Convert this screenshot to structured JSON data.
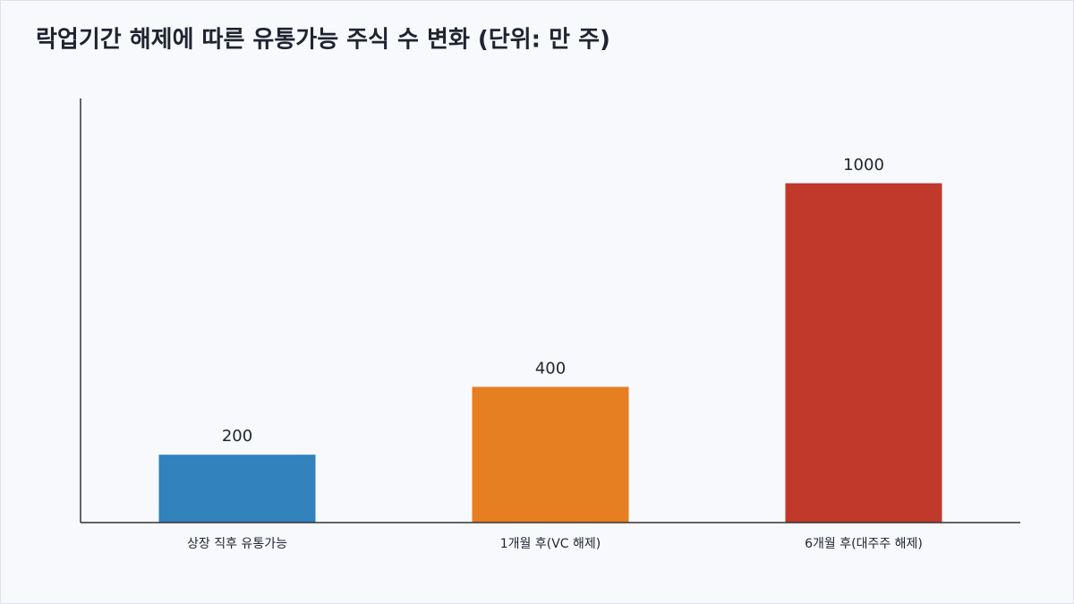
{
  "chart_data": {
    "type": "bar",
    "title": "락업기간 해제에 따른 유통가능 주식 수 변화 (단위: 만 주)",
    "categories": [
      "상장 직후 유통가능",
      "1개월 후(VC 해제)",
      "6개월 후(대주주 해제)"
    ],
    "values": [
      200,
      400,
      1000
    ],
    "colors": [
      "#3182bd",
      "#e67e22",
      "#c0392b"
    ],
    "ylim": [
      0,
      1250
    ]
  }
}
